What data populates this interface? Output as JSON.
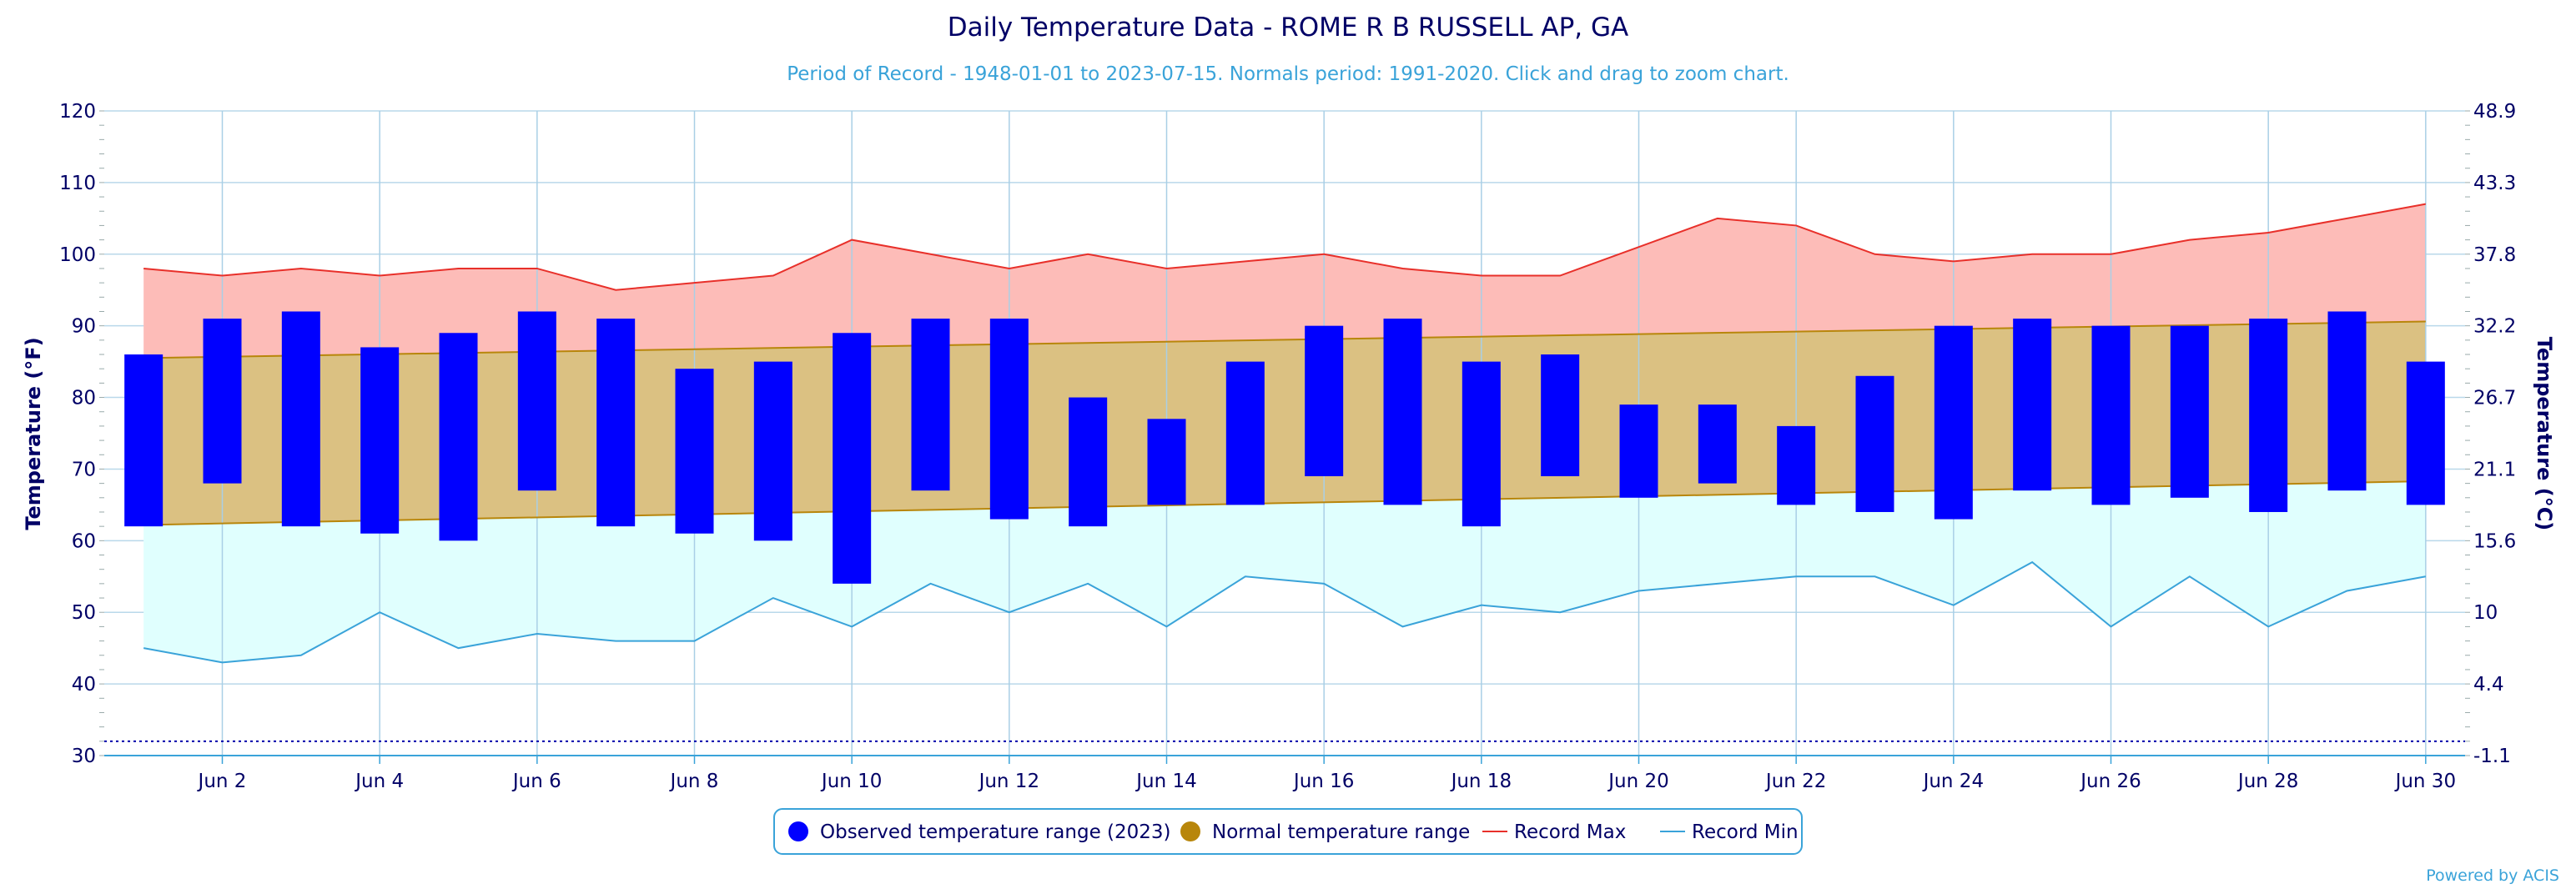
{
  "chart_data": {
    "type": "bar",
    "title": "Daily Temperature Data - ROME R B RUSSELL AP, GA",
    "subtitle": "Period of Record - 1948-01-01 to 2023-07-15. Normals period: 1991-2020. Click and drag to zoom chart.",
    "ylabel": "Temperature (°F)",
    "ylabel_right": "Temperature (°C)",
    "ylim": [
      30,
      120
    ],
    "y_ticks": [
      30,
      40,
      50,
      60,
      70,
      80,
      90,
      100,
      110,
      120
    ],
    "y_ticks_right": [
      "-1.1",
      "4.4",
      "10",
      "15.6",
      "21.1",
      "26.7",
      "32.2",
      "37.8",
      "43.3",
      "48.9"
    ],
    "x_days": [
      1,
      2,
      3,
      4,
      5,
      6,
      7,
      8,
      9,
      10,
      11,
      12,
      13,
      14,
      15,
      16,
      17,
      18,
      19,
      20,
      21,
      22,
      23,
      24,
      25,
      26,
      27,
      28,
      29,
      30
    ],
    "x_tick_labels": [
      "Jun 2",
      "Jun 4",
      "Jun 6",
      "Jun 8",
      "Jun 10",
      "Jun 12",
      "Jun 14",
      "Jun 16",
      "Jun 18",
      "Jun 20",
      "Jun 22",
      "Jun 24",
      "Jun 26",
      "Jun 28",
      "Jun 30"
    ],
    "x_tick_days": [
      2,
      4,
      6,
      8,
      10,
      12,
      14,
      16,
      18,
      20,
      22,
      24,
      26,
      28,
      30
    ],
    "grid": true,
    "legend_position": "bottom-center",
    "dotted_line_value": 32,
    "series": [
      {
        "name": "Observed temperature range (2023)",
        "type": "range-bar",
        "color": "#0000ff",
        "low": [
          62,
          68,
          62,
          61,
          60,
          67,
          62,
          61,
          60,
          54,
          67,
          63,
          62,
          65,
          65,
          69,
          65,
          62,
          69,
          66,
          68,
          65,
          64,
          63,
          67,
          65,
          66,
          64,
          67,
          65
        ],
        "high": [
          86,
          91,
          92,
          87,
          89,
          92,
          91,
          84,
          85,
          89,
          91,
          91,
          80,
          77,
          85,
          90,
          91,
          85,
          86,
          79,
          79,
          76,
          83,
          90,
          91,
          90,
          90,
          91,
          92,
          85
        ]
      },
      {
        "name": "Normal temperature range",
        "type": "range-area",
        "color": "#b8860b",
        "fill": "#dbc182",
        "low_start": 62.2,
        "low_end": 68.3,
        "high_start": 85.5,
        "high_end": 90.6
      },
      {
        "name": "Record Max",
        "type": "line",
        "color": "#e8302a",
        "fill": "#fdbcb8",
        "values": [
          98,
          97,
          98,
          97,
          98,
          98,
          95,
          96,
          97,
          102,
          100,
          98,
          100,
          98,
          99,
          100,
          98,
          97,
          97,
          101,
          105,
          104,
          100,
          99,
          100,
          100,
          102,
          103,
          105,
          107
        ]
      },
      {
        "name": "Record Min",
        "type": "line",
        "color": "#3aa3d9",
        "fill": "#e0fffe",
        "values": [
          45,
          43,
          44,
          50,
          45,
          47,
          46,
          46,
          52,
          48,
          54,
          50,
          54,
          48,
          55,
          54,
          48,
          51,
          50,
          53,
          54,
          55,
          55,
          51,
          57,
          48,
          55,
          48,
          53,
          55
        ]
      }
    ]
  },
  "credit": "Powered by ACIS"
}
